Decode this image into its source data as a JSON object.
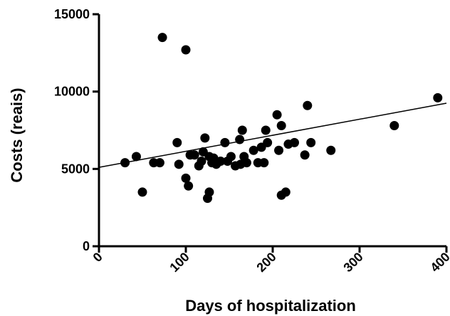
{
  "chart_data": {
    "type": "scatter",
    "title": "",
    "xlabel": "Days of hospitalization",
    "ylabel": "Costs (reais)",
    "xlim": [
      0,
      400
    ],
    "ylim": [
      0,
      15000
    ],
    "x_ticks": [
      0,
      100,
      200,
      300,
      400
    ],
    "y_ticks": [
      0,
      5000,
      10000,
      15000
    ],
    "x_tick_labels": [
      "0",
      "100",
      "200",
      "300",
      "400"
    ],
    "y_tick_labels": [
      "0",
      "5000",
      "10000",
      "15000"
    ],
    "grid": false,
    "legend": "none",
    "point_color": "#000000",
    "trendline": {
      "x": [
        0,
        400
      ],
      "y": [
        5100,
        9250
      ]
    },
    "points": [
      {
        "x": 30,
        "y": 5400
      },
      {
        "x": 43,
        "y": 5800
      },
      {
        "x": 50,
        "y": 3500
      },
      {
        "x": 63,
        "y": 5400
      },
      {
        "x": 70,
        "y": 5400
      },
      {
        "x": 73,
        "y": 13500
      },
      {
        "x": 90,
        "y": 6700
      },
      {
        "x": 92,
        "y": 5300
      },
      {
        "x": 100,
        "y": 12700
      },
      {
        "x": 100,
        "y": 4400
      },
      {
        "x": 103,
        "y": 3900
      },
      {
        "x": 105,
        "y": 5900
      },
      {
        "x": 110,
        "y": 5900
      },
      {
        "x": 115,
        "y": 5200
      },
      {
        "x": 118,
        "y": 5500
      },
      {
        "x": 120,
        "y": 6100
      },
      {
        "x": 122,
        "y": 7000
      },
      {
        "x": 125,
        "y": 3100
      },
      {
        "x": 127,
        "y": 3500
      },
      {
        "x": 127,
        "y": 5800
      },
      {
        "x": 130,
        "y": 5400
      },
      {
        "x": 132,
        "y": 5700
      },
      {
        "x": 135,
        "y": 5300
      },
      {
        "x": 140,
        "y": 5500
      },
      {
        "x": 145,
        "y": 6700
      },
      {
        "x": 148,
        "y": 5500
      },
      {
        "x": 152,
        "y": 5800
      },
      {
        "x": 157,
        "y": 5200
      },
      {
        "x": 162,
        "y": 6900
      },
      {
        "x": 163,
        "y": 5300
      },
      {
        "x": 165,
        "y": 7500
      },
      {
        "x": 167,
        "y": 5800
      },
      {
        "x": 170,
        "y": 5400
      },
      {
        "x": 178,
        "y": 6200
      },
      {
        "x": 183,
        "y": 5400
      },
      {
        "x": 187,
        "y": 6400
      },
      {
        "x": 190,
        "y": 5400
      },
      {
        "x": 192,
        "y": 7500
      },
      {
        "x": 194,
        "y": 6700
      },
      {
        "x": 205,
        "y": 8500
      },
      {
        "x": 207,
        "y": 6200
      },
      {
        "x": 210,
        "y": 7800
      },
      {
        "x": 210,
        "y": 3300
      },
      {
        "x": 215,
        "y": 3500
      },
      {
        "x": 218,
        "y": 6600
      },
      {
        "x": 225,
        "y": 6700
      },
      {
        "x": 237,
        "y": 5900
      },
      {
        "x": 240,
        "y": 9100
      },
      {
        "x": 244,
        "y": 6700
      },
      {
        "x": 267,
        "y": 6200
      },
      {
        "x": 340,
        "y": 7800
      },
      {
        "x": 390,
        "y": 9600
      }
    ]
  }
}
